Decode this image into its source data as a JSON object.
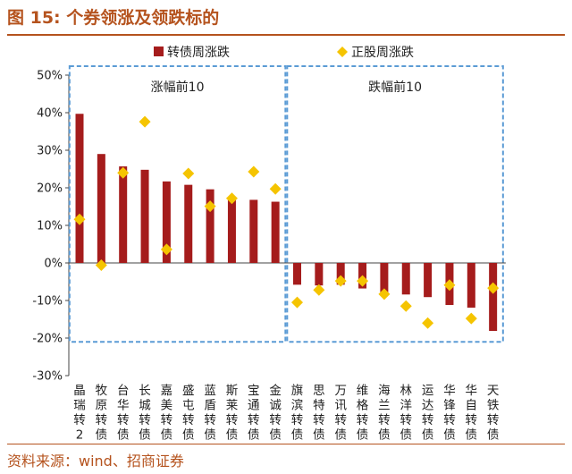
{
  "figure": {
    "title": "图 15:  个券领涨及领跌标的",
    "source": "资料来源：wind、招商证券"
  },
  "colors": {
    "title": "#b5531e",
    "bar": "#a51c1c",
    "marker": "#f5c400",
    "box": "#5b9bd5"
  },
  "chart_data": {
    "type": "bar",
    "title": "",
    "xlabel": "",
    "ylabel": "",
    "ylim": [
      -30,
      50
    ],
    "yticks": [
      -30,
      -20,
      -10,
      0,
      10,
      20,
      30,
      40,
      50
    ],
    "ytick_labels": [
      "-30%",
      "-20%",
      "-10%",
      "0%",
      "10%",
      "20%",
      "30%",
      "40%",
      "50%"
    ],
    "grid": false,
    "legend_position": "top",
    "categories": [
      "晶瑞转2",
      "牧原转债",
      "台华转债",
      "长城转债",
      "嘉美转债",
      "盛屯转债",
      "蓝盾转债",
      "斯莱转债",
      "宝通转债",
      "金诚转债",
      "旗滨转债",
      "思特转债",
      "万讯转债",
      "维格转债",
      "海兰转债",
      "林洋转债",
      "运达转债",
      "华锋转债",
      "华自转债",
      "天铁转债"
    ],
    "series": [
      {
        "name": "转债周涨跌",
        "type": "bar",
        "values": [
          39.7,
          29.0,
          25.7,
          24.8,
          21.7,
          20.8,
          19.6,
          17.5,
          16.8,
          16.3,
          -5.8,
          -6.0,
          -5.8,
          -6.8,
          -7.8,
          -8.4,
          -9.1,
          -11.2,
          -11.9,
          -18.1
        ]
      },
      {
        "name": "正股周涨跌",
        "type": "scatter",
        "values": [
          11.6,
          -0.6,
          24.0,
          37.6,
          3.6,
          23.8,
          15.1,
          17.2,
          24.3,
          19.7,
          -10.5,
          -7.2,
          -4.8,
          -4.8,
          -8.3,
          -11.5,
          -16.0,
          -5.9,
          -14.8,
          -6.7
        ]
      }
    ],
    "annotations": [
      {
        "label": "涨幅前10",
        "from_index": 0,
        "to_index": 9
      },
      {
        "label": "跌幅前10",
        "from_index": 10,
        "to_index": 19
      }
    ]
  }
}
